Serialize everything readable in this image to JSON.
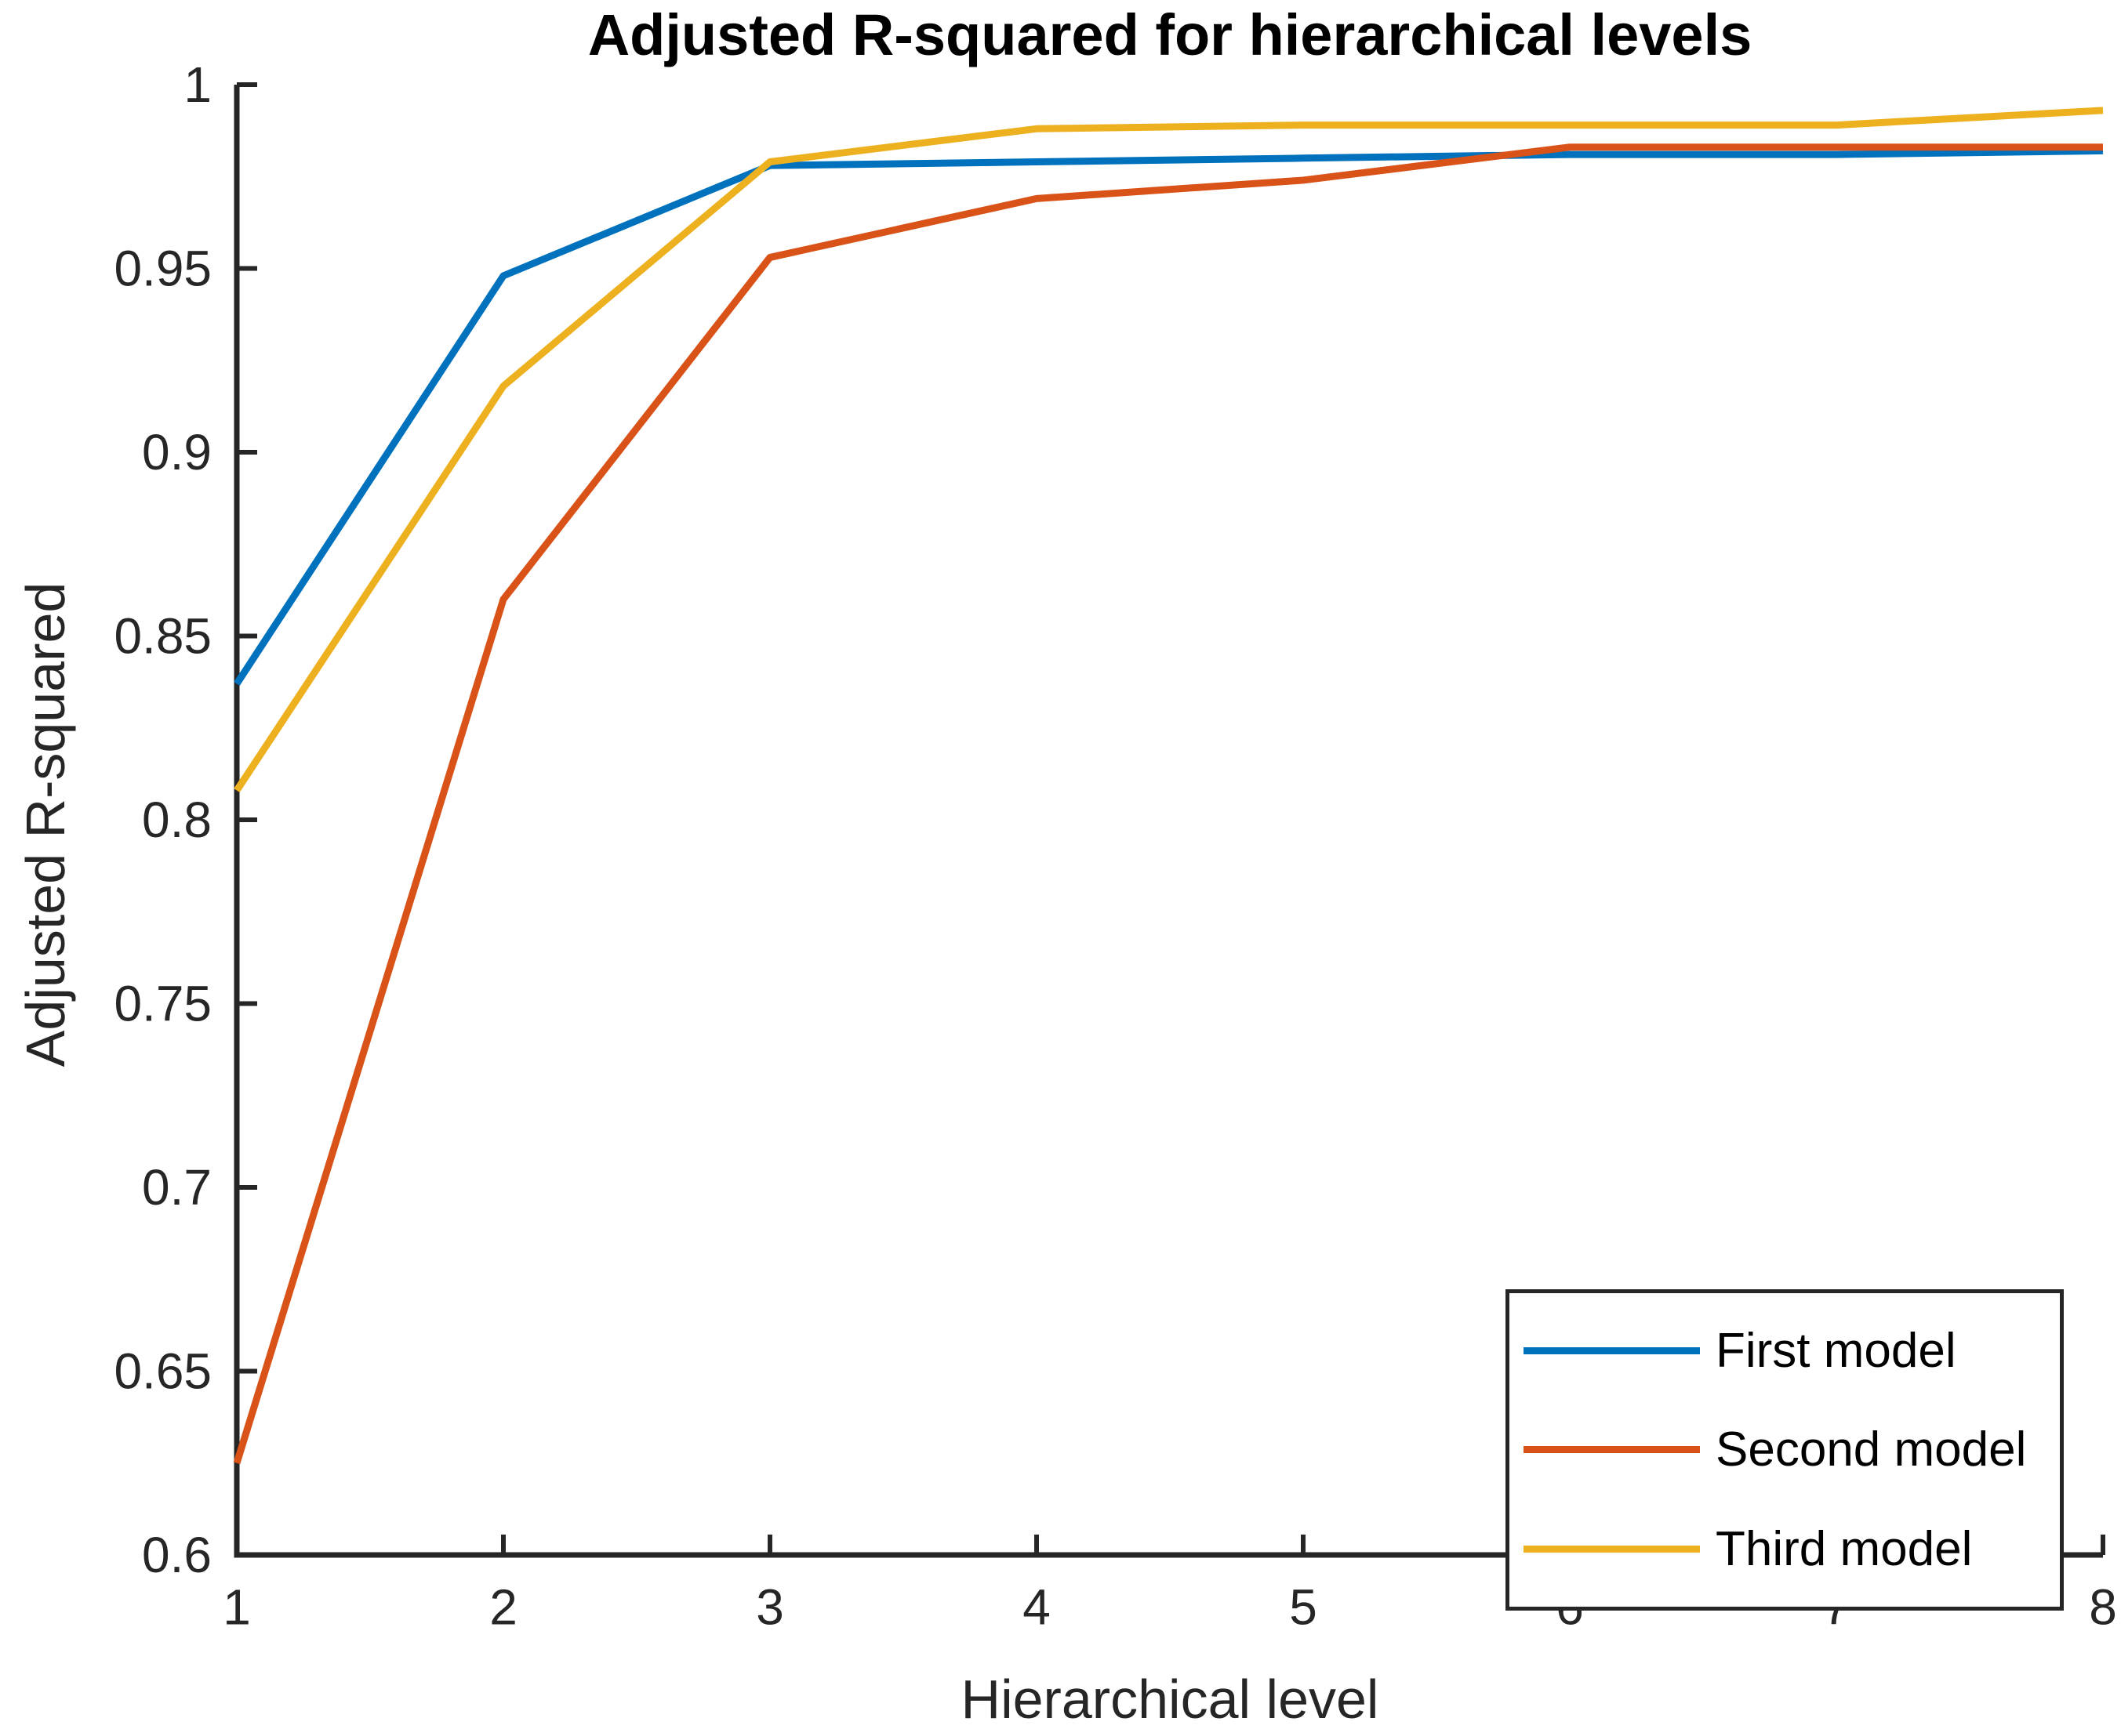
{
  "figure": {
    "background": "#ffffff"
  },
  "chart_data": {
    "type": "line",
    "title": "Adjusted R-squared for hierarchical levels",
    "xlabel": "Hierarchical level",
    "ylabel": "Adjusted R-squared",
    "xlim": [
      1,
      8
    ],
    "ylim": [
      0.6,
      1.0
    ],
    "grid": false,
    "legend_position": "south-east",
    "axis_color": "#262626",
    "x": [
      1,
      2,
      3,
      4,
      5,
      6,
      7,
      8
    ],
    "x_tick_labels": [
      "1",
      "2",
      "3",
      "4",
      "5",
      "6",
      "7",
      "8"
    ],
    "y_ticks": [
      0.6,
      0.65,
      0.7,
      0.75,
      0.8,
      0.85,
      0.9,
      0.95,
      1.0
    ],
    "y_tick_labels": [
      "0.6",
      "0.65",
      "0.7",
      "0.75",
      "0.8",
      "0.85",
      "0.9",
      "0.95",
      "1"
    ],
    "series": [
      {
        "name": "First model",
        "color": "#0072BD",
        "values": [
          0.837,
          0.948,
          0.978,
          0.979,
          0.98,
          0.981,
          0.981,
          0.982
        ]
      },
      {
        "name": "Second model",
        "color": "#D95319",
        "values": [
          0.625,
          0.86,
          0.953,
          0.969,
          0.974,
          0.983,
          0.983,
          0.983
        ]
      },
      {
        "name": "Third model",
        "color": "#EDB120",
        "values": [
          0.808,
          0.918,
          0.979,
          0.988,
          0.989,
          0.989,
          0.989,
          0.993
        ]
      }
    ]
  }
}
